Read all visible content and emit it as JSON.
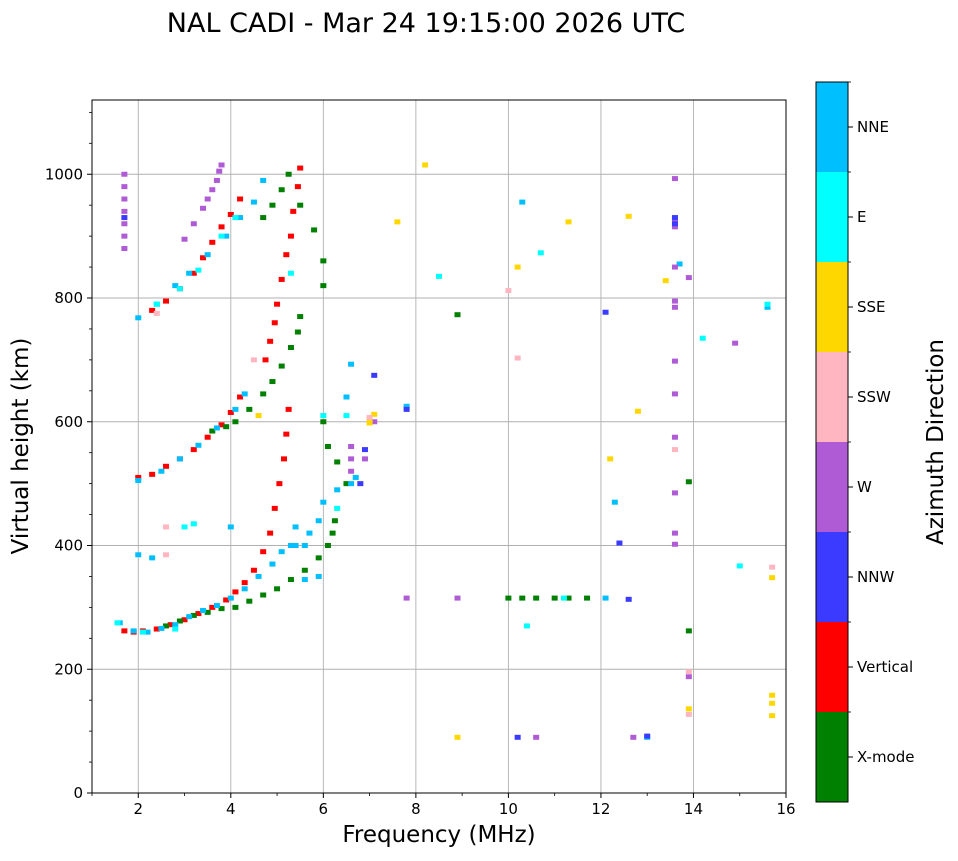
{
  "chart_data": {
    "type": "scatter",
    "title": "NAL CADI - Mar 24 19:15:00 2026 UTC",
    "xlabel": "Frequency (MHz)",
    "ylabel": "Virtual height (km)",
    "xlim": [
      1,
      16
    ],
    "ylim": [
      0,
      1120
    ],
    "xticks": [
      2,
      4,
      6,
      8,
      10,
      12,
      14,
      16
    ],
    "yticks": [
      0,
      200,
      400,
      600,
      800,
      1000
    ],
    "grid": true,
    "colorbar": {
      "label": "Azimuth Direction",
      "categories": [
        {
          "name": "X-mode",
          "color": "#008000"
        },
        {
          "name": "Vertical",
          "color": "#ff0000"
        },
        {
          "name": "NNW",
          "color": "#3b3bff"
        },
        {
          "name": "W",
          "color": "#b05bd6"
        },
        {
          "name": "SSW",
          "color": "#ffb6c1"
        },
        {
          "name": "SSE",
          "color": "#ffd700"
        },
        {
          "name": "E",
          "color": "#00ffff"
        },
        {
          "name": "NNE",
          "color": "#00bfff"
        }
      ]
    },
    "traces": [
      {
        "name": "Vertical",
        "color": "#ff0000",
        "points": [
          [
            1.7,
            262
          ],
          [
            1.9,
            260
          ],
          [
            2.1,
            262
          ],
          [
            2.4,
            265
          ],
          [
            2.7,
            272
          ],
          [
            3.0,
            280
          ],
          [
            3.3,
            290
          ],
          [
            3.6,
            300
          ],
          [
            3.9,
            312
          ],
          [
            4.1,
            325
          ],
          [
            4.3,
            340
          ],
          [
            4.5,
            360
          ],
          [
            4.7,
            390
          ],
          [
            4.85,
            420
          ],
          [
            4.95,
            460
          ],
          [
            5.05,
            500
          ],
          [
            5.15,
            540
          ],
          [
            5.2,
            580
          ],
          [
            5.25,
            620
          ],
          [
            2.0,
            510
          ],
          [
            2.3,
            515
          ],
          [
            2.6,
            528
          ],
          [
            2.9,
            540
          ],
          [
            3.2,
            555
          ],
          [
            3.5,
            575
          ],
          [
            3.8,
            595
          ],
          [
            4.0,
            615
          ],
          [
            4.2,
            640
          ],
          [
            2.3,
            780
          ],
          [
            2.6,
            795
          ],
          [
            2.9,
            815
          ],
          [
            3.2,
            840
          ],
          [
            3.4,
            865
          ],
          [
            3.6,
            890
          ],
          [
            3.8,
            915
          ],
          [
            4.0,
            935
          ],
          [
            4.2,
            960
          ],
          [
            4.75,
            700
          ],
          [
            4.85,
            730
          ],
          [
            4.95,
            760
          ],
          [
            5.0,
            790
          ],
          [
            5.1,
            830
          ],
          [
            5.2,
            870
          ],
          [
            5.3,
            900
          ],
          [
            5.35,
            940
          ],
          [
            5.45,
            980
          ],
          [
            5.5,
            1010
          ]
        ]
      },
      {
        "name": "X-mode",
        "color": "#008000",
        "points": [
          [
            2.6,
            270
          ],
          [
            2.9,
            278
          ],
          [
            3.2,
            287
          ],
          [
            3.5,
            292
          ],
          [
            3.8,
            298
          ],
          [
            4.1,
            300
          ],
          [
            4.4,
            310
          ],
          [
            4.7,
            320
          ],
          [
            5.0,
            330
          ],
          [
            5.3,
            345
          ],
          [
            5.6,
            360
          ],
          [
            5.9,
            380
          ],
          [
            6.1,
            400
          ],
          [
            6.2,
            420
          ],
          [
            6.25,
            440
          ],
          [
            3.6,
            585
          ],
          [
            3.9,
            592
          ],
          [
            4.1,
            600
          ],
          [
            4.4,
            620
          ],
          [
            4.7,
            645
          ],
          [
            4.9,
            665
          ],
          [
            5.1,
            690
          ],
          [
            5.3,
            720
          ],
          [
            5.45,
            745
          ],
          [
            5.5,
            770
          ],
          [
            4.7,
            930
          ],
          [
            4.9,
            950
          ],
          [
            5.1,
            975
          ],
          [
            5.25,
            1000
          ],
          [
            5.5,
            950
          ],
          [
            5.8,
            910
          ],
          [
            6.0,
            860
          ],
          [
            6.0,
            820
          ],
          [
            6.0,
            600
          ],
          [
            6.1,
            560
          ],
          [
            6.3,
            535
          ],
          [
            6.5,
            500
          ],
          [
            10.0,
            315
          ],
          [
            10.3,
            315
          ],
          [
            10.6,
            315
          ],
          [
            11.0,
            315
          ],
          [
            11.3,
            315
          ],
          [
            11.7,
            315
          ],
          [
            13.9,
            262
          ],
          [
            13.9,
            503
          ],
          [
            8.9,
            773
          ]
        ]
      },
      {
        "name": "NNE",
        "color": "#00bfff",
        "points": [
          [
            1.6,
            275
          ],
          [
            1.9,
            262
          ],
          [
            2.2,
            260
          ],
          [
            2.5,
            266
          ],
          [
            2.8,
            272
          ],
          [
            3.1,
            285
          ],
          [
            3.4,
            295
          ],
          [
            3.7,
            303
          ],
          [
            4.0,
            315
          ],
          [
            4.3,
            330
          ],
          [
            4.6,
            350
          ],
          [
            4.9,
            370
          ],
          [
            5.1,
            390
          ],
          [
            5.4,
            400
          ],
          [
            5.7,
            420
          ],
          [
            5.9,
            440
          ],
          [
            2.0,
            505
          ],
          [
            2.5,
            520
          ],
          [
            2.9,
            540
          ],
          [
            3.3,
            562
          ],
          [
            3.7,
            590
          ],
          [
            4.1,
            620
          ],
          [
            4.3,
            645
          ],
          [
            2.0,
            768
          ],
          [
            2.4,
            790
          ],
          [
            2.8,
            820
          ],
          [
            3.1,
            840
          ],
          [
            3.5,
            870
          ],
          [
            3.9,
            900
          ],
          [
            4.2,
            930
          ],
          [
            4.5,
            955
          ],
          [
            4.7,
            990
          ],
          [
            2.0,
            385
          ],
          [
            2.3,
            380
          ],
          [
            4.0,
            430
          ],
          [
            6.0,
            470
          ],
          [
            6.3,
            490
          ],
          [
            6.6,
            500
          ],
          [
            6.7,
            510
          ],
          [
            6.6,
            693
          ],
          [
            6.5,
            640
          ],
          [
            7.8,
            625
          ],
          [
            5.4,
            430
          ],
          [
            5.6,
            345
          ],
          [
            5.9,
            350
          ],
          [
            5.3,
            400
          ],
          [
            5.6,
            400
          ],
          [
            10.3,
            955
          ],
          [
            12.1,
            315
          ],
          [
            12.3,
            470
          ],
          [
            13.7,
            855
          ],
          [
            15.6,
            785
          ],
          [
            13.0,
            90
          ]
        ]
      },
      {
        "name": "E",
        "color": "#00ffff",
        "points": [
          [
            1.55,
            275
          ],
          [
            2.1,
            260
          ],
          [
            2.8,
            265
          ],
          [
            3.0,
            430
          ],
          [
            3.2,
            435
          ],
          [
            2.4,
            790
          ],
          [
            2.9,
            815
          ],
          [
            3.3,
            845
          ],
          [
            3.8,
            900
          ],
          [
            4.1,
            930
          ],
          [
            5.3,
            840
          ],
          [
            6.0,
            610
          ],
          [
            6.3,
            460
          ],
          [
            8.5,
            835
          ],
          [
            10.4,
            270
          ],
          [
            10.7,
            873
          ],
          [
            11.2,
            315
          ],
          [
            14.2,
            735
          ],
          [
            15.0,
            367
          ],
          [
            15.6,
            790
          ],
          [
            6.5,
            610
          ]
        ]
      },
      {
        "name": "W",
        "color": "#b05bd6",
        "points": [
          [
            1.7,
            1000
          ],
          [
            1.7,
            980
          ],
          [
            1.7,
            960
          ],
          [
            1.7,
            940
          ],
          [
            1.7,
            920
          ],
          [
            1.7,
            900
          ],
          [
            1.7,
            880
          ],
          [
            3.0,
            895
          ],
          [
            3.2,
            920
          ],
          [
            3.4,
            945
          ],
          [
            3.5,
            960
          ],
          [
            3.6,
            975
          ],
          [
            3.7,
            990
          ],
          [
            3.75,
            1005
          ],
          [
            3.8,
            1015
          ],
          [
            6.6,
            560
          ],
          [
            6.6,
            540
          ],
          [
            6.6,
            520
          ],
          [
            6.9,
            540
          ],
          [
            7.1,
            600
          ],
          [
            7.8,
            315
          ],
          [
            8.9,
            315
          ],
          [
            13.6,
            993
          ],
          [
            13.6,
            925
          ],
          [
            13.6,
            915
          ],
          [
            13.6,
            850
          ],
          [
            13.9,
            833
          ],
          [
            13.6,
            795
          ],
          [
            13.6,
            785
          ],
          [
            13.6,
            698
          ],
          [
            13.6,
            645
          ],
          [
            13.6,
            575
          ],
          [
            13.6,
            485
          ],
          [
            13.6,
            420
          ],
          [
            13.6,
            402
          ],
          [
            14.9,
            727
          ],
          [
            12.7,
            90
          ],
          [
            10.6,
            90
          ],
          [
            13.9,
            188
          ]
        ]
      },
      {
        "name": "NNW",
        "color": "#3b3bff",
        "points": [
          [
            1.7,
            930
          ],
          [
            7.1,
            675
          ],
          [
            7.8,
            620
          ],
          [
            6.9,
            555
          ],
          [
            6.8,
            500
          ],
          [
            12.1,
            777
          ],
          [
            12.4,
            404
          ],
          [
            12.6,
            313
          ],
          [
            13.0,
            92
          ],
          [
            10.2,
            90
          ],
          [
            13.6,
            920
          ],
          [
            13.6,
            930
          ]
        ]
      },
      {
        "name": "SSE",
        "color": "#ffd700",
        "points": [
          [
            8.2,
            1015
          ],
          [
            7.6,
            923
          ],
          [
            10.2,
            850
          ],
          [
            11.3,
            923
          ],
          [
            12.6,
            932
          ],
          [
            13.4,
            828
          ],
          [
            12.8,
            617
          ],
          [
            12.2,
            540
          ],
          [
            7.0,
            605
          ],
          [
            7.0,
            598
          ],
          [
            7.1,
            612
          ],
          [
            8.9,
            90
          ],
          [
            13.9,
            136
          ],
          [
            15.7,
            158
          ],
          [
            15.7,
            145
          ],
          [
            15.7,
            125
          ],
          [
            15.7,
            348
          ],
          [
            4.6,
            610
          ]
        ]
      },
      {
        "name": "SSW",
        "color": "#ffb6c1",
        "points": [
          [
            10.0,
            812
          ],
          [
            10.2,
            703
          ],
          [
            13.6,
            555
          ],
          [
            15.7,
            365
          ],
          [
            13.9,
            196
          ],
          [
            13.9,
            127
          ],
          [
            2.6,
            430
          ],
          [
            2.6,
            385
          ],
          [
            2.4,
            775
          ],
          [
            7.0,
            607
          ],
          [
            4.5,
            700
          ]
        ]
      }
    ]
  }
}
